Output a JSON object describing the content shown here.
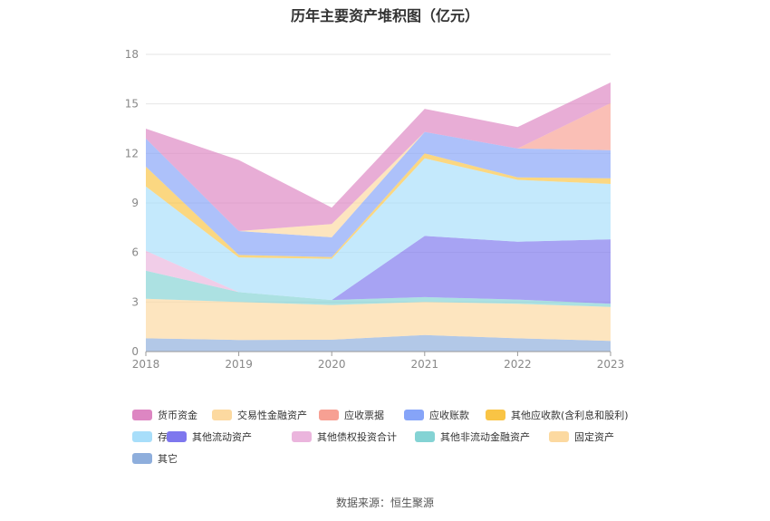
{
  "chart_data": {
    "type": "area",
    "title": "历年主要资产堆积图（亿元）",
    "x": [
      "2018",
      "2019",
      "2020",
      "2021",
      "2022",
      "2023"
    ],
    "ylim": [
      0,
      18
    ],
    "yticks": [
      0,
      3,
      6,
      9,
      12,
      15,
      18
    ],
    "grid": true,
    "legend_position": "bottom",
    "series": [
      {
        "name": "其它",
        "color": "#8eaedc",
        "values": [
          0.8,
          0.7,
          0.72,
          1.0,
          0.8,
          0.65
        ]
      },
      {
        "name": "固定资产",
        "color": "#fcd9a0",
        "values": [
          2.4,
          2.3,
          2.1,
          2.0,
          2.1,
          2.05
        ]
      },
      {
        "name": "其他非流动金融资产",
        "color": "#84d3d4",
        "values": [
          1.7,
          0.6,
          0.3,
          0.3,
          0.25,
          0.2
        ]
      },
      {
        "name": "其他债权投资合计",
        "color": "#ebb5dd",
        "values": [
          1.2,
          0.0,
          0.0,
          0.0,
          0.0,
          0.0
        ]
      },
      {
        "name": "其他流动资产",
        "color": "#7e77ee",
        "values": [
          0.0,
          0.0,
          0.0,
          3.7,
          3.5,
          3.9
        ]
      },
      {
        "name": "存货",
        "color": "#a8defa",
        "values": [
          3.9,
          2.1,
          2.5,
          4.7,
          3.75,
          3.35
        ]
      },
      {
        "name": "其他应收款(含利息和股利)",
        "color": "#f9c445",
        "values": [
          1.2,
          0.15,
          0.1,
          0.3,
          0.15,
          0.35
        ]
      },
      {
        "name": "应收账款",
        "color": "#86a4f8",
        "values": [
          1.7,
          1.45,
          1.2,
          1.3,
          1.75,
          1.7
        ]
      },
      {
        "name": "应收票据",
        "color": "#f7a093",
        "values": [
          0.0,
          0.0,
          0.0,
          0.0,
          0.0,
          2.85
        ]
      },
      {
        "name": "交易性金融资产",
        "color": "#fcd9a0",
        "values": [
          0.0,
          0.0,
          0.8,
          0.0,
          0.0,
          0.0
        ]
      },
      {
        "name": "货币资金",
        "color": "#dd86c2",
        "values": [
          0.6,
          4.3,
          1.0,
          1.4,
          1.3,
          1.25
        ]
      }
    ]
  },
  "legend": {
    "items": [
      {
        "name": "货币资金",
        "color": "#dd86c2"
      },
      {
        "name": "交易性金融资产",
        "color": "#fcd9a0"
      },
      {
        "name": "应收票据",
        "color": "#f7a093"
      },
      {
        "name": "应收账款",
        "color": "#86a4f8"
      },
      {
        "name": "其他应收款(含利息和股利)",
        "color": "#f9c445"
      },
      {
        "name": "存货",
        "color": "#a8defa"
      },
      {
        "name": "其他流动资产",
        "color": "#7e77ee"
      },
      {
        "name": "其他债权投资合计",
        "color": "#ebb5dd"
      },
      {
        "name": "其他非流动金融资产",
        "color": "#84d3d4"
      },
      {
        "name": "固定资产",
        "color": "#fcd9a0"
      },
      {
        "name": "其它",
        "color": "#8eaedc"
      }
    ]
  },
  "source": "数据来源：恒生聚源"
}
